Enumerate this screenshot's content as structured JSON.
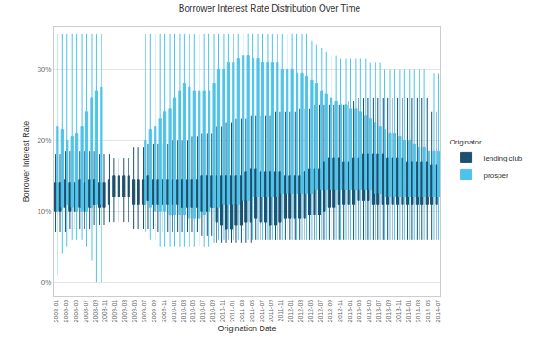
{
  "chart_data": {
    "type": "box",
    "title": "Borrower Interest Rate Distribution Over Time",
    "x_label": "Origination Date",
    "y_label": "Borrower Interest Rate",
    "legend_title": "Originator",
    "legend": "right",
    "grid": true,
    "categories": [
      "2008-01",
      null,
      "2008-03",
      null,
      "2008-05",
      null,
      "2008-07",
      null,
      "2008-09",
      null,
      "2008-11",
      null,
      "2009-01",
      null,
      "2009-03",
      null,
      "2009-05",
      null,
      "2009-07",
      null,
      "2009-09",
      null,
      "2009-11",
      null,
      "2010-01",
      null,
      "2010-03",
      null,
      "2010-05",
      null,
      "2010-07",
      null,
      "2010-09",
      null,
      "2010-11",
      null,
      "2011-01",
      null,
      "2011-03",
      null,
      "2011-05",
      null,
      "2011-07",
      null,
      "2011-09",
      null,
      "2011-11",
      null,
      "2012-01",
      null,
      "2012-03",
      null,
      "2012-05",
      null,
      "2012-07",
      null,
      "2012-09",
      null,
      "2012-11",
      null,
      "2013-01",
      null,
      "2013-03",
      null,
      "2013-05",
      null,
      "2013-07",
      null,
      "2013-09",
      null,
      "2013-11",
      null,
      "2014-01",
      null,
      "2014-03",
      null,
      "2014-05",
      null,
      "2014-07"
    ],
    "ylim": [
      -2,
      36
    ],
    "yticks": [
      {
        "value": 0,
        "label": "0%"
      },
      {
        "value": 10,
        "label": "10%"
      },
      {
        "value": 20,
        "label": "20%"
      },
      {
        "value": 30,
        "label": "30%"
      }
    ],
    "series": [
      {
        "name": "lending club",
        "color": "#1d4f6e",
        "low": [
          7,
          7,
          7,
          7.5,
          7.5,
          7.5,
          7.5,
          7.5,
          8,
          8,
          8,
          8.5,
          8.5,
          8.5,
          8.5,
          8.5,
          7.5,
          7.5,
          7.5,
          7.5,
          7.5,
          7,
          7,
          7,
          7,
          7,
          7,
          7,
          7,
          7,
          6.5,
          6.5,
          6.5,
          5.5,
          5.5,
          5.5,
          5.5,
          5.5,
          5.5,
          5.5,
          5.5,
          6,
          6,
          6,
          6,
          6,
          6,
          6,
          6,
          6,
          6,
          6,
          6,
          6,
          6,
          6,
          6,
          6,
          6,
          6,
          6,
          6,
          6,
          6,
          6,
          6,
          6,
          6,
          6,
          6,
          6,
          6,
          6,
          6,
          6,
          6,
          6,
          6,
          6
        ],
        "q1": [
          10,
          10,
          10.5,
          10,
          10,
          10.5,
          10,
          10.5,
          11,
          10.5,
          10.5,
          11,
          12,
          12,
          12,
          12,
          11,
          11,
          11,
          11.5,
          11,
          11,
          11,
          11,
          11,
          11,
          10.5,
          10.5,
          10.5,
          10.5,
          10,
          10,
          10.5,
          8.5,
          8,
          7.5,
          7.5,
          8,
          8,
          8.5,
          8.5,
          9,
          8.5,
          8.5,
          8,
          8,
          8.5,
          9,
          9,
          9,
          9,
          9,
          9.5,
          9.5,
          9.5,
          10,
          10.5,
          10.5,
          11,
          11,
          11,
          11,
          11.5,
          11.5,
          11.5,
          11,
          11,
          11,
          11,
          11,
          11,
          11,
          11,
          11,
          11,
          11,
          11,
          11,
          11
        ],
        "median": [
          12,
          12,
          12.5,
          12,
          12,
          12.5,
          12,
          12.5,
          12.5,
          12.5,
          12.5,
          13,
          13.5,
          13.5,
          13.5,
          13.5,
          13,
          13,
          13,
          13.5,
          13,
          13,
          13,
          13,
          13,
          13,
          12.5,
          12.5,
          12.5,
          12.5,
          12.5,
          12,
          12.5,
          11.5,
          11,
          10.5,
          11,
          11,
          11,
          11.5,
          12,
          12,
          12,
          12,
          12,
          12,
          12,
          12,
          12,
          12,
          12,
          12.5,
          12.5,
          12.5,
          12.5,
          13,
          13.5,
          13.5,
          14,
          14,
          14,
          14,
          14,
          14,
          14,
          14,
          14,
          14,
          13.5,
          13.5,
          13.5,
          13.5,
          13.5,
          13.5,
          14,
          14,
          13.5,
          13.5,
          13.5
        ],
        "q3": [
          14,
          14,
          14.5,
          14,
          14,
          14.5,
          14,
          14.5,
          14.5,
          14,
          14,
          14.5,
          15,
          15,
          15,
          15,
          14.5,
          14.5,
          14.5,
          15,
          14.5,
          14.5,
          14.5,
          14.5,
          14.5,
          14.5,
          14.5,
          14.5,
          14.5,
          14.5,
          15,
          15,
          15,
          15,
          15,
          15,
          15,
          15,
          15,
          15.5,
          16,
          16,
          15.5,
          15.5,
          15.5,
          15.5,
          15.5,
          15,
          15,
          15,
          15,
          15.5,
          16,
          16,
          16,
          17,
          17.5,
          17.5,
          17.5,
          17,
          17,
          17.5,
          17.5,
          18,
          18,
          18,
          18,
          18,
          17.5,
          17.5,
          17.5,
          17.5,
          17,
          17,
          17,
          17,
          17,
          16.5,
          16.5
        ],
        "high": [
          18,
          18,
          18.5,
          18.5,
          18.5,
          18.5,
          18.5,
          18.5,
          18.5,
          18,
          18,
          18,
          17.5,
          17.5,
          17.5,
          17.5,
          19,
          19,
          19,
          19.5,
          19.5,
          19.5,
          19.5,
          19.5,
          20,
          20,
          20,
          20,
          20.5,
          20.5,
          21,
          21,
          21,
          22,
          22,
          22.5,
          22.5,
          23,
          23,
          23,
          23.5,
          23.5,
          23.5,
          23.5,
          23.5,
          24,
          24,
          24,
          24,
          24,
          24.5,
          24.5,
          24.5,
          25,
          25,
          25,
          25,
          25,
          25,
          25,
          25.5,
          25.5,
          26,
          26,
          26,
          26,
          26,
          26,
          26,
          26,
          26,
          26,
          26,
          26,
          26,
          26,
          26,
          24,
          24
        ]
      },
      {
        "name": "prosper",
        "color": "#4fc3ea",
        "low": [
          1,
          4,
          5,
          6,
          6,
          6,
          5,
          3,
          0,
          0,
          null,
          null,
          null,
          null,
          null,
          null,
          null,
          null,
          7,
          6,
          6,
          5,
          5,
          5,
          5,
          5,
          5,
          5,
          5,
          5,
          5,
          5,
          5.5,
          6,
          6,
          6,
          6,
          6,
          6,
          6,
          6,
          6,
          6,
          6,
          6,
          6,
          6,
          6,
          6,
          6,
          6,
          6,
          6,
          6,
          6,
          6,
          6,
          6,
          6,
          6,
          6,
          6,
          6,
          6,
          6,
          6,
          6,
          6,
          6,
          6,
          6,
          6,
          6,
          6,
          6,
          6,
          6,
          6,
          6
        ],
        "q1": [
          10,
          10.5,
          11,
          10.5,
          10,
          10,
          10,
          10.5,
          11,
          11,
          null,
          null,
          null,
          null,
          null,
          null,
          null,
          null,
          11,
          10.5,
          10,
          10,
          10,
          9.5,
          9.5,
          9.5,
          9.5,
          9,
          9,
          9,
          9.5,
          10,
          10.5,
          10.5,
          11,
          11,
          11,
          11,
          11.5,
          11.5,
          12,
          12,
          12,
          12,
          12,
          12,
          12.5,
          12.5,
          12.5,
          12.5,
          12.5,
          12.5,
          12.5,
          13,
          13,
          13,
          13,
          13,
          13,
          13,
          13,
          13,
          13,
          13,
          13,
          12.5,
          12.5,
          12,
          12,
          12,
          12,
          12,
          12,
          12,
          12,
          12,
          12,
          12,
          12
        ],
        "median": [
          15,
          15,
          15.5,
          15,
          14,
          14,
          14.5,
          15,
          16,
          16,
          null,
          null,
          null,
          null,
          null,
          null,
          null,
          null,
          16,
          15.5,
          15,
          15,
          15.5,
          15.5,
          16,
          16,
          16,
          15.5,
          16,
          16,
          16.5,
          17,
          18,
          18.5,
          19,
          19,
          19,
          19,
          19.5,
          19.5,
          20,
          20,
          20,
          20,
          20,
          20,
          20,
          20,
          20,
          20,
          20,
          20,
          19.5,
          19.5,
          19.5,
          19,
          19,
          18.5,
          18.5,
          18,
          18,
          18,
          17.5,
          17.5,
          17,
          17,
          16.5,
          16.5,
          16,
          16,
          16,
          16,
          16,
          15.5,
          15.5,
          15.5,
          15,
          15,
          15
        ],
        "q3": [
          22,
          21.5,
          20,
          20.5,
          21,
          22,
          24,
          26,
          27,
          27.5,
          null,
          null,
          null,
          null,
          null,
          null,
          null,
          null,
          20,
          21.5,
          22,
          23,
          24,
          24.5,
          26,
          27,
          28,
          27.5,
          27,
          27,
          27,
          27,
          28,
          30,
          30,
          31,
          31,
          31.5,
          32,
          32,
          31.5,
          31.5,
          31,
          31,
          31,
          31,
          30,
          30,
          30,
          29.5,
          29.5,
          29,
          28.5,
          28,
          27,
          26.5,
          26,
          25.5,
          25,
          25,
          24.5,
          24.5,
          24,
          23.5,
          23,
          22.5,
          22,
          21.5,
          21,
          21,
          20.5,
          20,
          20,
          19.5,
          19,
          19,
          18.5,
          18.5,
          18.5
        ],
        "high": [
          35,
          35,
          35,
          35,
          35,
          35,
          35,
          35,
          35,
          35,
          null,
          null,
          null,
          null,
          null,
          null,
          null,
          null,
          35,
          35,
          35,
          35,
          35,
          35,
          35,
          35,
          35,
          35,
          35,
          35,
          35,
          35,
          35,
          35,
          35,
          35,
          35,
          35,
          35,
          35,
          35,
          35,
          35,
          35,
          35,
          35,
          35,
          35,
          35,
          35,
          35,
          35,
          34,
          33.5,
          33,
          32.5,
          32,
          32,
          31.5,
          31.5,
          31.5,
          31.5,
          31.5,
          31.5,
          31,
          31,
          31,
          30,
          30,
          30,
          30,
          30,
          30,
          30,
          30,
          30,
          30,
          29.5,
          29.5
        ]
      }
    ]
  }
}
